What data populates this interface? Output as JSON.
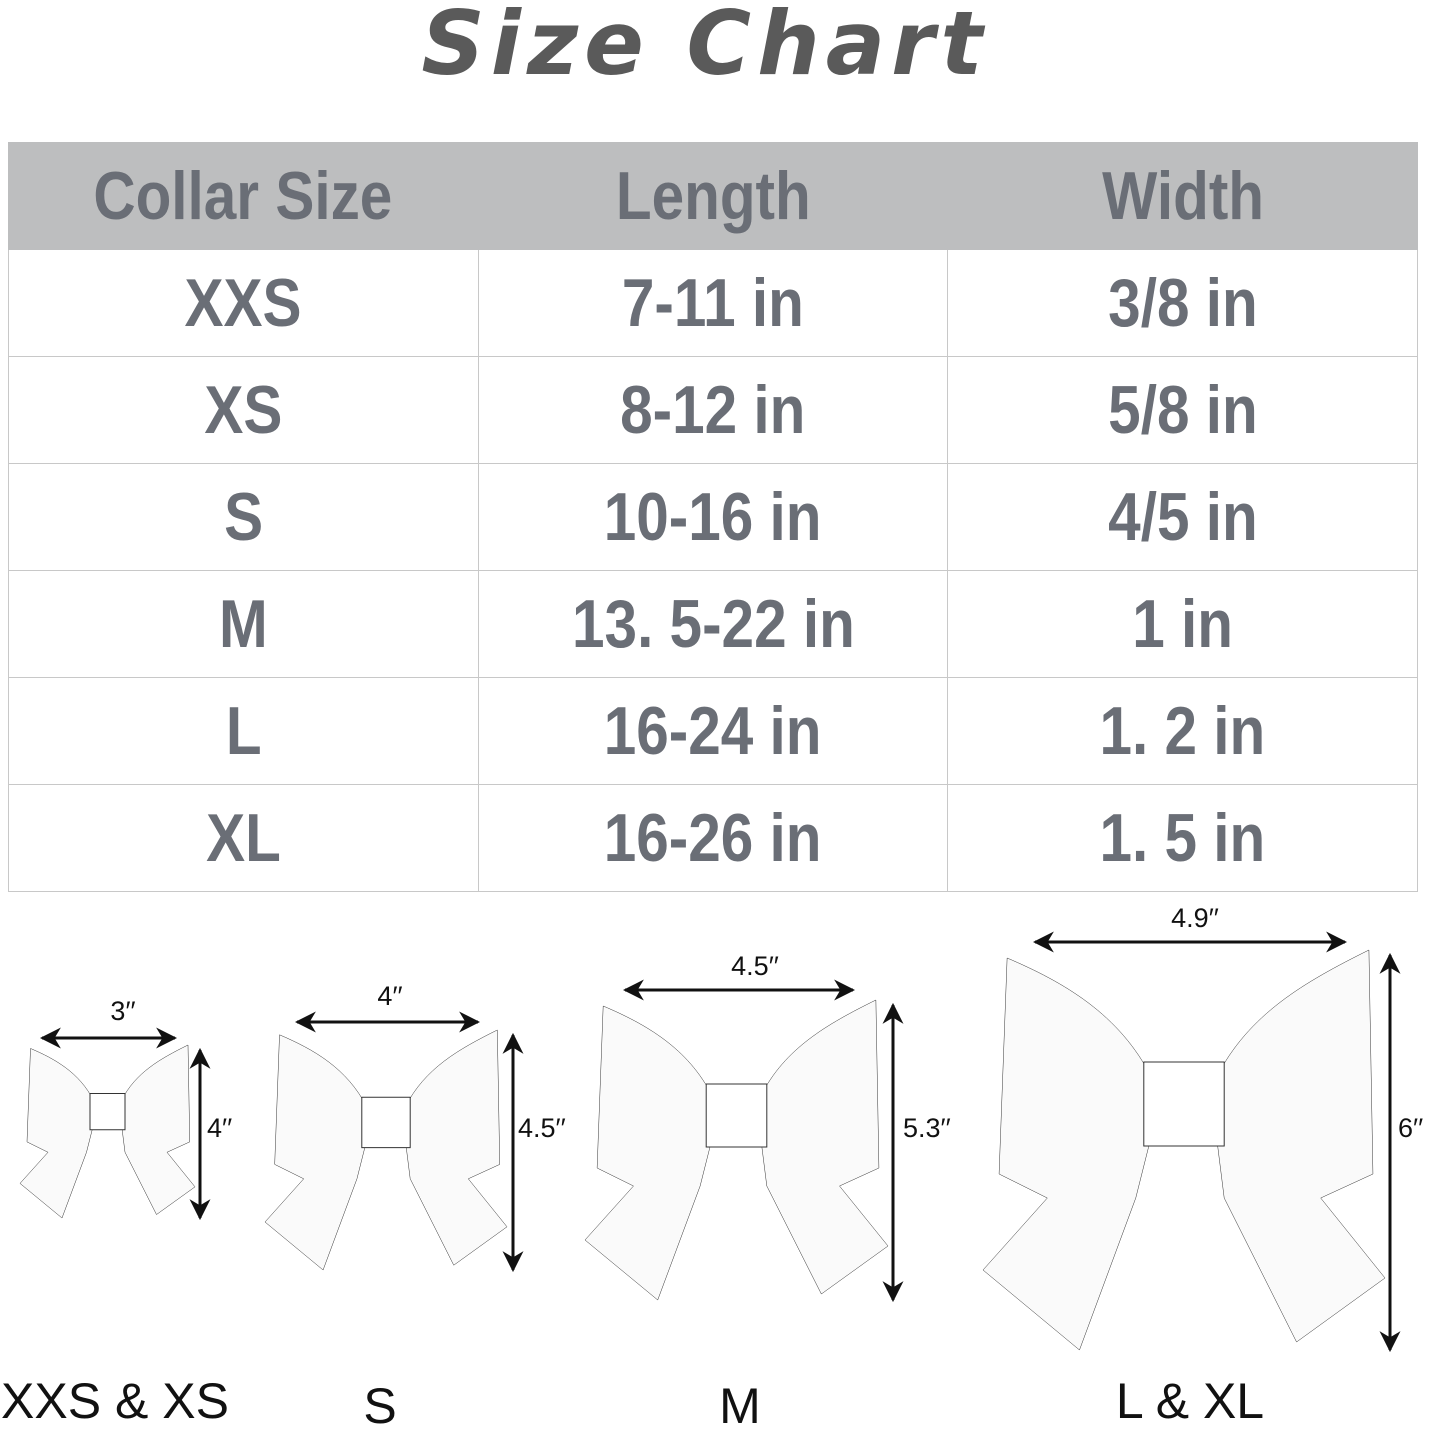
{
  "title": "Size Chart",
  "table": {
    "headers": [
      "Collar Size",
      "Length",
      "Width"
    ],
    "rows": [
      [
        "XXS",
        "7-11 in",
        "3/8 in"
      ],
      [
        "XS",
        "8-12 in",
        "5/8 in"
      ],
      [
        "S",
        "10-16 in",
        "4/5 in"
      ],
      [
        "M",
        "13. 5-22 in",
        "1 in"
      ],
      [
        "L",
        "16-24 in",
        "1. 2 in"
      ],
      [
        "XL",
        "16-26 in",
        "1. 5 in"
      ]
    ]
  },
  "bows": [
    {
      "label": "XXS & XS",
      "width": "3′′",
      "height": "4′′"
    },
    {
      "label": "S",
      "width": "4′′",
      "height": "4.5′′"
    },
    {
      "label": "M",
      "width": "4.5′′",
      "height": "5.3′′"
    },
    {
      "label": "L & XL",
      "width": "4.9′′",
      "height": "6′′"
    }
  ],
  "colors": {
    "header_bg": "#bdbebf",
    "table_text": "#6a6e76",
    "title": "#5a5a5a"
  }
}
